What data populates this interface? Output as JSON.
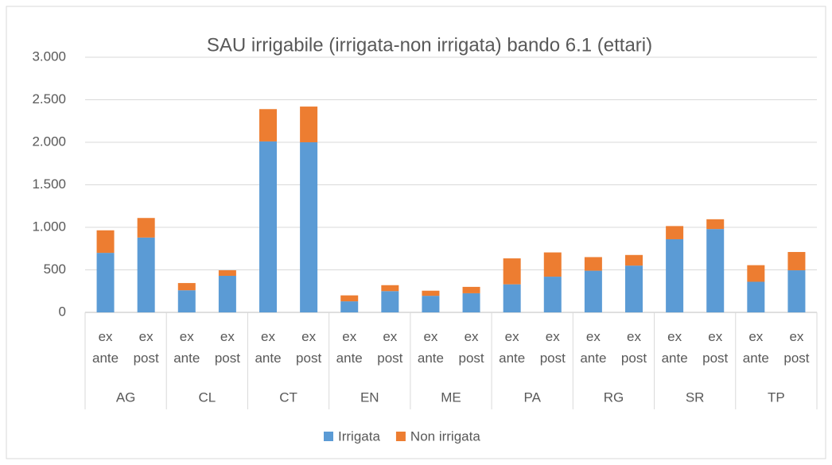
{
  "chart_data": {
    "type": "stacked_bar",
    "title": "SAU irrigabile (irrigata-non irrigata) bando 6.1 (ettari)",
    "groups": [
      "AG",
      "CL",
      "CT",
      "EN",
      "ME",
      "PA",
      "RG",
      "SR",
      "TP"
    ],
    "categories": [
      "ex ante",
      "ex post",
      "ex ante",
      "ex post",
      "ex ante",
      "ex post",
      "ex ante",
      "ex post",
      "ex ante",
      "ex post",
      "ex ante",
      "ex post",
      "ex ante",
      "ex post",
      "ex ante",
      "ex post",
      "ex ante",
      "ex post"
    ],
    "series": [
      {
        "name": "Irrigata",
        "color": "#5b9bd5",
        "values": [
          700,
          880,
          260,
          430,
          2010,
          2000,
          130,
          250,
          195,
          225,
          330,
          420,
          490,
          550,
          860,
          980,
          360,
          495
        ]
      },
      {
        "name": "Non irrigata",
        "color": "#ed7d31",
        "values": [
          265,
          230,
          85,
          65,
          380,
          420,
          70,
          70,
          60,
          75,
          305,
          285,
          160,
          125,
          155,
          115,
          195,
          215
        ]
      }
    ],
    "ylim": [
      0,
      3000
    ],
    "yticks": [
      0,
      {
        "value": 500,
        "label": "500"
      },
      {
        "value": 1000,
        "label": "1.000"
      },
      {
        "value": 1500,
        "label": "1.500"
      },
      {
        "value": 2000,
        "label": "2.000"
      },
      {
        "value": 2500,
        "label": "2.500"
      },
      {
        "value": 3000,
        "label": "3.000"
      }
    ],
    "grid": true,
    "legend": "bottom"
  }
}
